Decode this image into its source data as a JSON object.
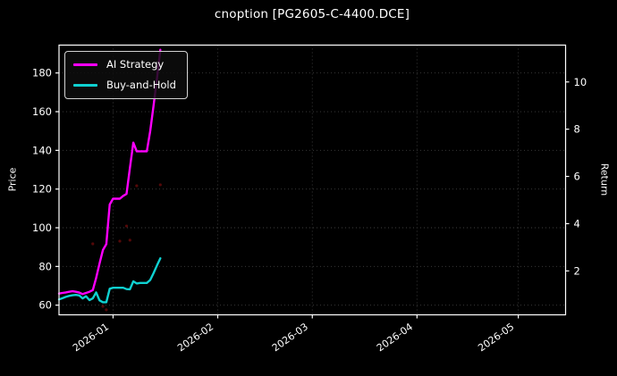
{
  "title": "cnoption [PG2605-C-4400.DCE]",
  "colors": {
    "background": "#000000",
    "foreground": "#ffffff",
    "grid": "#3f3f3f",
    "ai_strategy": "#ff00ff",
    "buy_and_hold": "#0fd1d1",
    "trade_marker": "#991111"
  },
  "chart_data": {
    "type": "line",
    "title": "cnoption [PG2605-C-4400.DCE]",
    "xlabel": "",
    "ylabel": "Price",
    "ylabel_right": "Return",
    "grid": true,
    "legend_position": "upper-left",
    "dates": [
      "2025-12-16",
      "2025-12-17",
      "2025-12-18",
      "2025-12-19",
      "2025-12-20",
      "2025-12-21",
      "2025-12-22",
      "2025-12-23",
      "2025-12-24",
      "2025-12-25",
      "2025-12-26",
      "2025-12-27",
      "2025-12-28",
      "2025-12-29",
      "2025-12-30",
      "2025-12-31",
      "2026-01-01",
      "2026-01-02",
      "2026-01-03",
      "2026-01-04",
      "2026-01-05",
      "2026-01-06",
      "2026-01-07",
      "2026-01-08",
      "2026-01-09",
      "2026-01-10",
      "2026-01-11",
      "2026-01-12",
      "2026-01-13",
      "2026-01-14",
      "2026-01-15"
    ],
    "series": [
      {
        "name": "AI Strategy",
        "color": "#ff00ff",
        "axis": "left",
        "values": [
          66.0,
          66.3,
          66.6,
          66.9,
          67.2,
          66.9,
          66.5,
          65.7,
          66.3,
          66.9,
          67.8,
          74.0,
          81.5,
          88.5,
          91.5,
          112.0,
          115.0,
          115.0,
          115.0,
          116.5,
          117.5,
          131.0,
          144.0,
          139.5,
          139.5,
          139.5,
          139.5,
          150.0,
          163.0,
          177.0,
          192.0
        ]
      },
      {
        "name": "Buy-and-Hold",
        "color": "#0fd1d1",
        "axis": "left",
        "values": [
          63.0,
          63.6,
          64.3,
          64.8,
          65.1,
          65.3,
          65.0,
          63.5,
          64.6,
          62.6,
          63.5,
          66.6,
          62.5,
          61.5,
          61.5,
          68.5,
          69.0,
          69.0,
          69.0,
          69.0,
          68.3,
          68.2,
          72.3,
          71.2,
          71.5,
          71.5,
          71.5,
          73.0,
          76.5,
          80.5,
          84.2
        ]
      }
    ],
    "trade_markers": {
      "color": "#991111",
      "points": [
        {
          "date": "2025-12-26",
          "price": 91.7
        },
        {
          "date": "2025-12-29",
          "price": 59.4
        },
        {
          "date": "2025-12-30",
          "price": 57.6
        },
        {
          "date": "2026-01-03",
          "price": 93.1
        },
        {
          "date": "2026-01-05",
          "price": 100.9
        },
        {
          "date": "2026-01-06",
          "price": 93.6
        },
        {
          "date": "2026-01-08",
          "price": 121.7
        },
        {
          "date": "2026-01-15",
          "price": 122.2
        }
      ]
    },
    "axes": {
      "x": {
        "start": "2025-12-16",
        "end": "2026-05-15",
        "ticks": [
          {
            "label": "2026-01",
            "date": "2026-01-01"
          },
          {
            "label": "2026-02",
            "date": "2026-02-01"
          },
          {
            "label": "2026-03",
            "date": "2026-03-01"
          },
          {
            "label": "2026-04",
            "date": "2026-04-01"
          },
          {
            "label": "2026-05",
            "date": "2026-05-01"
          }
        ]
      },
      "y_left": {
        "label": "Price",
        "min": 55.0,
        "max": 194.4,
        "ticks": [
          60,
          80,
          100,
          120,
          140,
          160,
          180
        ]
      },
      "y_right": {
        "label": "Return",
        "min": 0.14,
        "max": 11.56,
        "ticks": [
          2,
          4,
          6,
          8,
          10
        ]
      }
    }
  },
  "legend": {
    "entries": [
      {
        "label": "AI Strategy",
        "color": "#ff00ff"
      },
      {
        "label": "Buy-and-Hold",
        "color": "#0fd1d1"
      }
    ]
  }
}
